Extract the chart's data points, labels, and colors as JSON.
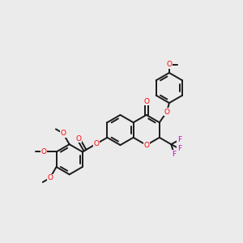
{
  "bg_color": "#ebebeb",
  "bond_color": "#1a1a1a",
  "oxygen_color": "#ff0000",
  "fluorine_color": "#cc00cc",
  "line_width": 1.4,
  "figsize": [
    3.0,
    3.0
  ],
  "dpi": 100,
  "xlim": [
    0,
    10
  ],
  "ylim": [
    0,
    10
  ]
}
